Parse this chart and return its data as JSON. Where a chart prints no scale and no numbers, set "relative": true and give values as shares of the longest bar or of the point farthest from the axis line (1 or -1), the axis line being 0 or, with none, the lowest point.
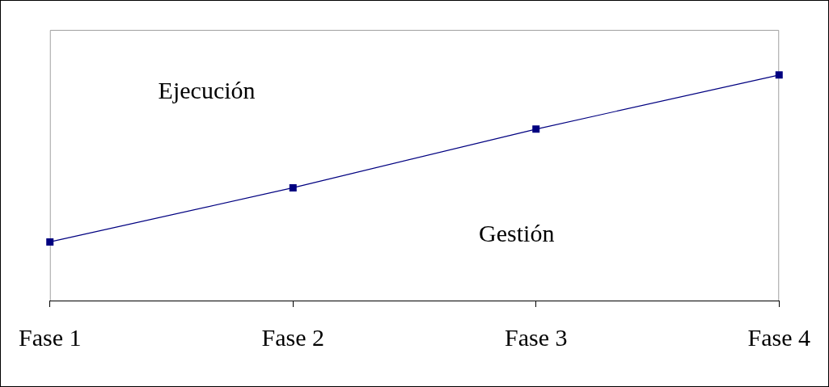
{
  "chart_data": {
    "type": "line",
    "relative": true,
    "categories": [
      "Fase 1",
      "Fase 2",
      "Fase 3",
      "Fase 4"
    ],
    "series": [
      {
        "color": "#000080",
        "values": [
          0.26,
          0.5,
          0.76,
          1
        ]
      }
    ],
    "marker": "square",
    "line_style": "solid",
    "legend": false,
    "grid": false,
    "annotations": [
      "Ejecución",
      "Gestión"
    ]
  }
}
